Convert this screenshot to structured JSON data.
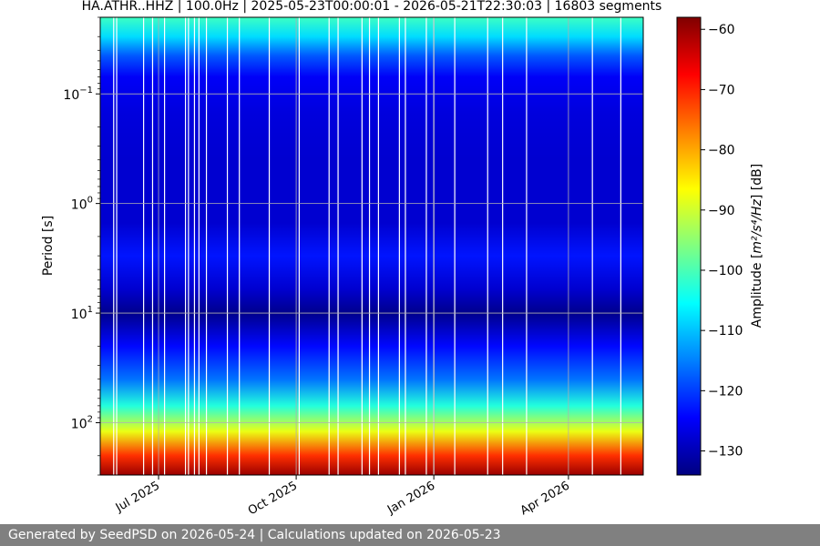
{
  "chart_data": {
    "type": "heatmap",
    "title": "HA.ATHR..HHZ | 100.0Hz | 2025-05-23T00:00:01 - 2026-05-21T22:30:03 | 16803 segments",
    "ylabel": "Period [s]",
    "colorbar_label_prefix": "Amplitude [",
    "colorbar_label_unit": "m²/s⁴/Hz",
    "colorbar_label_suffix": "] [dB]",
    "x_range": [
      "2025-05-23",
      "2026-05-21"
    ],
    "x_ticks": [
      {
        "date": "2025-07-01",
        "label": "Jul 2025"
      },
      {
        "date": "2025-10-01",
        "label": "Oct 2025"
      },
      {
        "date": "2026-01-01",
        "label": "Jan 2026"
      },
      {
        "date": "2026-04-01",
        "label": "Apr 2026"
      }
    ],
    "y_scale": "log",
    "y_inverted": true,
    "y_range": [
      0.02,
      300
    ],
    "y_ticks": [
      {
        "value": 0.1,
        "base": "10",
        "exp": "−1"
      },
      {
        "value": 1,
        "base": "10",
        "exp": "0"
      },
      {
        "value": 10,
        "base": "10",
        "exp": "1"
      },
      {
        "value": 100,
        "base": "10",
        "exp": "2"
      }
    ],
    "colormap": "jet",
    "clim": [
      -134,
      -58
    ],
    "colorbar_ticks": [
      "−60",
      "−70",
      "−80",
      "−90",
      "−100",
      "−110",
      "−120",
      "−130"
    ],
    "colorbar_tick_values": [
      -60,
      -70,
      -80,
      -90,
      -100,
      -110,
      -120,
      -130
    ],
    "grid": true,
    "amplitude_profile": [
      {
        "period": 0.02,
        "db": -101
      },
      {
        "period": 0.03,
        "db": -108
      },
      {
        "period": 0.045,
        "db": -118
      },
      {
        "period": 0.07,
        "db": -125
      },
      {
        "period": 0.15,
        "db": -127
      },
      {
        "period": 0.4,
        "db": -128
      },
      {
        "period": 1.5,
        "db": -128
      },
      {
        "period": 3,
        "db": -123
      },
      {
        "period": 6,
        "db": -128
      },
      {
        "period": 10,
        "db": -133
      },
      {
        "period": 20,
        "db": -124
      },
      {
        "period": 40,
        "db": -116
      },
      {
        "period": 70,
        "db": -103
      },
      {
        "period": 120,
        "db": -88
      },
      {
        "period": 200,
        "db": -71
      },
      {
        "period": 300,
        "db": -60
      }
    ],
    "data_gaps": [
      "2025-06-01",
      "2025-06-03",
      "2025-06-21",
      "2025-06-27",
      "2025-07-05",
      "2025-07-19",
      "2025-07-21",
      "2025-07-25",
      "2025-07-28",
      "2025-08-02",
      "2025-08-16",
      "2025-08-24",
      "2025-09-13",
      "2025-10-03",
      "2025-10-23",
      "2025-10-29",
      "2025-11-14",
      "2025-11-19",
      "2025-11-25",
      "2025-12-09",
      "2025-12-13",
      "2025-12-27",
      "2026-01-01",
      "2026-01-15",
      "2026-02-06",
      "2026-02-16",
      "2026-03-04",
      "2026-04-17",
      "2026-05-06"
    ]
  },
  "footer": {
    "text": "Generated by SeedPSD on 2026-05-24 | Calculations updated on 2026-05-23"
  }
}
